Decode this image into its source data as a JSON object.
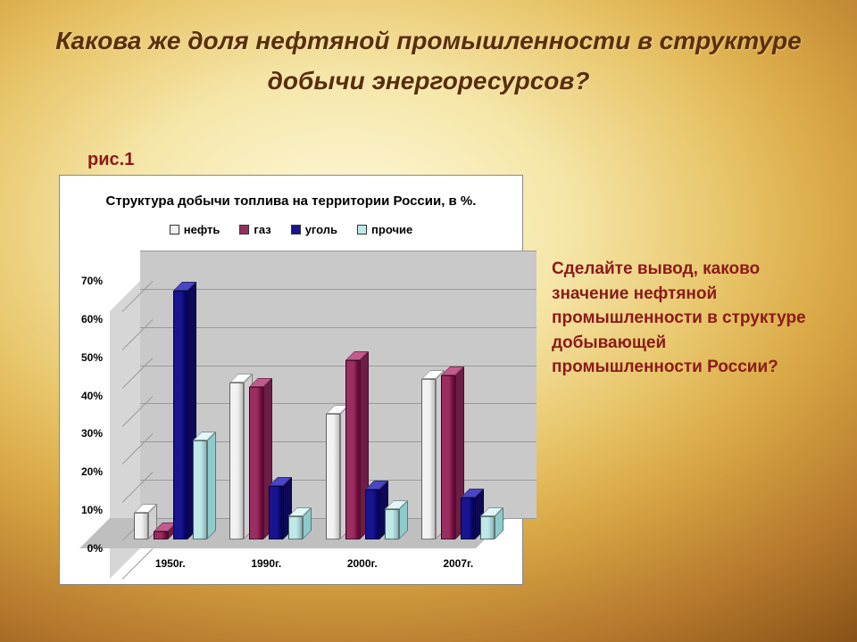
{
  "slide": {
    "title": "Какова же доля нефтяной промышленности в структуре добычи энергоресурсов?",
    "fig_label": "рис.1",
    "question": "Сделайте вывод, каково значение нефтяной промышленности в структуре добывающей промышленности России?"
  },
  "chart": {
    "type": "bar-3d-clustered",
    "title": "Структура добычи топлива на территории России, в %.",
    "background_color": "#ffffff",
    "wall_color": "#c9c9c9",
    "floor_color": "#bfbfbf",
    "grid_color": "#999999",
    "categories": [
      "1950г.",
      "1990г.",
      "2000г.",
      "2007г."
    ],
    "series": [
      {
        "name": "нефть",
        "color_front": "#f2f2f2",
        "color_top": "#ffffff",
        "color_side": "#cfcfcf"
      },
      {
        "name": "газ",
        "color_front": "#9a2e63",
        "color_top": "#c25a8d",
        "color_side": "#6e1d46"
      },
      {
        "name": "уголь",
        "color_front": "#1a1490",
        "color_top": "#4a46c5",
        "color_side": "#0d0858"
      },
      {
        "name": "прочие",
        "color_front": "#bfe8e8",
        "color_top": "#e2f6f6",
        "color_side": "#8fcacb"
      }
    ],
    "values": [
      [
        7,
        2,
        65,
        26
      ],
      [
        41,
        40,
        14,
        6
      ],
      [
        33,
        47,
        13,
        8
      ],
      [
        42,
        43,
        11,
        6
      ]
    ],
    "y_axis": {
      "min": 0,
      "max": 70,
      "step": 10,
      "format": "%"
    },
    "tick_fontsize": 12,
    "title_fontsize": 15,
    "legend_fontsize": 13
  }
}
